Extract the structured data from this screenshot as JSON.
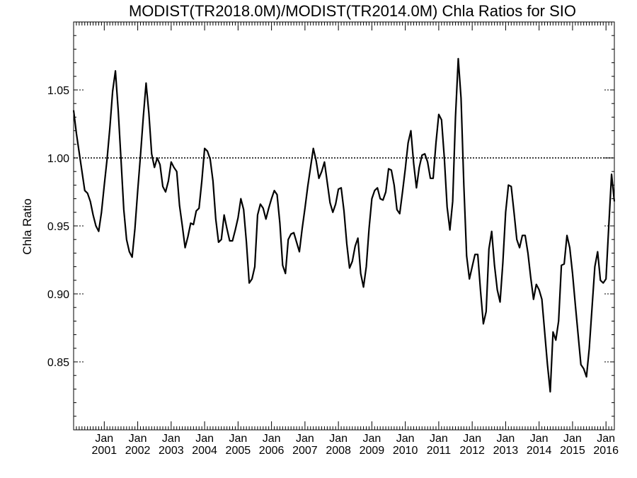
{
  "chart_data": {
    "type": "line",
    "title": "MODIST(TR2018.0M)/MODIST(TR2014.0M)  Chla Ratios for SIO",
    "xlabel": "",
    "ylabel": "Chla Ratio",
    "xlim": [
      "2000-02",
      "2016-04"
    ],
    "ylim": [
      0.8,
      1.1
    ],
    "yticks": [
      0.85,
      0.9,
      0.95,
      1.0,
      1.05
    ],
    "ytick_labels": [
      "0.85",
      "0.90",
      "0.95",
      "1.00",
      "1.05"
    ],
    "xticks": [
      {
        "date": "2001-01",
        "top": "Jan",
        "bottom": "2001"
      },
      {
        "date": "2002-01",
        "top": "Jan",
        "bottom": "2002"
      },
      {
        "date": "2003-01",
        "top": "Jan",
        "bottom": "2003"
      },
      {
        "date": "2004-01",
        "top": "Jan",
        "bottom": "2004"
      },
      {
        "date": "2005-01",
        "top": "Jan",
        "bottom": "2005"
      },
      {
        "date": "2006-01",
        "top": "Jan",
        "bottom": "2006"
      },
      {
        "date": "2007-01",
        "top": "Jan",
        "bottom": "2007"
      },
      {
        "date": "2008-01",
        "top": "Jan",
        "bottom": "2008"
      },
      {
        "date": "2009-01",
        "top": "Jan",
        "bottom": "2009"
      },
      {
        "date": "2010-01",
        "top": "Jan",
        "bottom": "2010"
      },
      {
        "date": "2011-01",
        "top": "Jan",
        "bottom": "2011"
      },
      {
        "date": "2012-01",
        "top": "Jan",
        "bottom": "2012"
      },
      {
        "date": "2013-01",
        "top": "Jan",
        "bottom": "2013"
      },
      {
        "date": "2014-01",
        "top": "Jan",
        "bottom": "2014"
      },
      {
        "date": "2015-01",
        "top": "Jan",
        "bottom": "2015"
      },
      {
        "date": "2016-01",
        "top": "Jan",
        "bottom": "2016"
      }
    ],
    "reference_line": 1.0,
    "grid": false,
    "series": [
      {
        "values": [
          [
            "2000-02",
            1.035
          ],
          [
            "2000-03",
            1.018
          ],
          [
            "2000-04",
            1.004
          ],
          [
            "2000-05",
            0.99
          ],
          [
            "2000-06",
            0.976
          ],
          [
            "2000-07",
            0.974
          ],
          [
            "2000-08",
            0.968
          ],
          [
            "2000-09",
            0.958
          ],
          [
            "2000-10",
            0.95
          ],
          [
            "2000-11",
            0.946
          ],
          [
            "2000-12",
            0.96
          ],
          [
            "2001-01",
            0.98
          ],
          [
            "2001-02",
            0.999
          ],
          [
            "2001-03",
            1.022
          ],
          [
            "2001-04",
            1.049
          ],
          [
            "2001-05",
            1.064
          ],
          [
            "2001-06",
            1.035
          ],
          [
            "2001-07",
            0.999
          ],
          [
            "2001-08",
            0.962
          ],
          [
            "2001-09",
            0.94
          ],
          [
            "2001-10",
            0.931
          ],
          [
            "2001-11",
            0.927
          ],
          [
            "2001-12",
            0.948
          ],
          [
            "2002-01",
            0.976
          ],
          [
            "2002-02",
            1.002
          ],
          [
            "2002-03",
            1.03
          ],
          [
            "2002-04",
            1.055
          ],
          [
            "2002-05",
            1.033
          ],
          [
            "2002-06",
            1.003
          ],
          [
            "2002-07",
            0.993
          ],
          [
            "2002-08",
            1.0
          ],
          [
            "2002-09",
            0.995
          ],
          [
            "2002-10",
            0.979
          ],
          [
            "2002-11",
            0.975
          ],
          [
            "2002-12",
            0.983
          ],
          [
            "2003-01",
            0.997
          ],
          [
            "2003-02",
            0.993
          ],
          [
            "2003-03",
            0.99
          ],
          [
            "2003-04",
            0.965
          ],
          [
            "2003-05",
            0.95
          ],
          [
            "2003-06",
            0.934
          ],
          [
            "2003-07",
            0.942
          ],
          [
            "2003-08",
            0.952
          ],
          [
            "2003-09",
            0.951
          ],
          [
            "2003-10",
            0.961
          ],
          [
            "2003-11",
            0.963
          ],
          [
            "2003-12",
            0.983
          ],
          [
            "2004-01",
            1.007
          ],
          [
            "2004-02",
            1.005
          ],
          [
            "2004-03",
            0.999
          ],
          [
            "2004-04",
            0.983
          ],
          [
            "2004-05",
            0.955
          ],
          [
            "2004-06",
            0.938
          ],
          [
            "2004-07",
            0.94
          ],
          [
            "2004-08",
            0.958
          ],
          [
            "2004-09",
            0.948
          ],
          [
            "2004-10",
            0.939
          ],
          [
            "2004-11",
            0.939
          ],
          [
            "2004-12",
            0.947
          ],
          [
            "2005-01",
            0.956
          ],
          [
            "2005-02",
            0.97
          ],
          [
            "2005-03",
            0.962
          ],
          [
            "2005-04",
            0.938
          ],
          [
            "2005-05",
            0.908
          ],
          [
            "2005-06",
            0.911
          ],
          [
            "2005-07",
            0.92
          ],
          [
            "2005-08",
            0.958
          ],
          [
            "2005-09",
            0.966
          ],
          [
            "2005-10",
            0.963
          ],
          [
            "2005-11",
            0.955
          ],
          [
            "2005-12",
            0.963
          ],
          [
            "2006-01",
            0.97
          ],
          [
            "2006-02",
            0.976
          ],
          [
            "2006-03",
            0.973
          ],
          [
            "2006-04",
            0.952
          ],
          [
            "2006-05",
            0.921
          ],
          [
            "2006-06",
            0.915
          ],
          [
            "2006-07",
            0.94
          ],
          [
            "2006-08",
            0.944
          ],
          [
            "2006-09",
            0.945
          ],
          [
            "2006-10",
            0.938
          ],
          [
            "2006-11",
            0.931
          ],
          [
            "2006-12",
            0.948
          ],
          [
            "2007-01",
            0.963
          ],
          [
            "2007-02",
            0.979
          ],
          [
            "2007-03",
            0.993
          ],
          [
            "2007-04",
            1.007
          ],
          [
            "2007-05",
            0.998
          ],
          [
            "2007-06",
            0.985
          ],
          [
            "2007-07",
            0.99
          ],
          [
            "2007-08",
            0.997
          ],
          [
            "2007-09",
            0.982
          ],
          [
            "2007-10",
            0.967
          ],
          [
            "2007-11",
            0.96
          ],
          [
            "2007-12",
            0.966
          ],
          [
            "2008-01",
            0.977
          ],
          [
            "2008-02",
            0.978
          ],
          [
            "2008-03",
            0.961
          ],
          [
            "2008-04",
            0.937
          ],
          [
            "2008-05",
            0.919
          ],
          [
            "2008-06",
            0.924
          ],
          [
            "2008-07",
            0.935
          ],
          [
            "2008-08",
            0.941
          ],
          [
            "2008-09",
            0.915
          ],
          [
            "2008-10",
            0.905
          ],
          [
            "2008-11",
            0.92
          ],
          [
            "2008-12",
            0.948
          ],
          [
            "2009-01",
            0.97
          ],
          [
            "2009-02",
            0.976
          ],
          [
            "2009-03",
            0.978
          ],
          [
            "2009-04",
            0.97
          ],
          [
            "2009-05",
            0.969
          ],
          [
            "2009-06",
            0.975
          ],
          [
            "2009-07",
            0.992
          ],
          [
            "2009-08",
            0.991
          ],
          [
            "2009-09",
            0.98
          ],
          [
            "2009-10",
            0.962
          ],
          [
            "2009-11",
            0.959
          ],
          [
            "2009-12",
            0.975
          ],
          [
            "2010-01",
            0.992
          ],
          [
            "2010-02",
            1.011
          ],
          [
            "2010-03",
            1.02
          ],
          [
            "2010-04",
            0.996
          ],
          [
            "2010-05",
            0.978
          ],
          [
            "2010-06",
            0.993
          ],
          [
            "2010-07",
            1.002
          ],
          [
            "2010-08",
            1.003
          ],
          [
            "2010-09",
            0.997
          ],
          [
            "2010-10",
            0.985
          ],
          [
            "2010-11",
            0.985
          ],
          [
            "2010-12",
            1.011
          ],
          [
            "2011-01",
            1.032
          ],
          [
            "2011-02",
            1.028
          ],
          [
            "2011-03",
            1.0
          ],
          [
            "2011-04",
            0.964
          ],
          [
            "2011-05",
            0.947
          ],
          [
            "2011-06",
            0.968
          ],
          [
            "2011-07",
            1.03
          ],
          [
            "2011-08",
            1.073
          ],
          [
            "2011-09",
            1.044
          ],
          [
            "2011-10",
            0.98
          ],
          [
            "2011-11",
            0.928
          ],
          [
            "2011-12",
            0.911
          ],
          [
            "2012-01",
            0.92
          ],
          [
            "2012-02",
            0.929
          ],
          [
            "2012-03",
            0.929
          ],
          [
            "2012-04",
            0.902
          ],
          [
            "2012-05",
            0.878
          ],
          [
            "2012-06",
            0.887
          ],
          [
            "2012-07",
            0.933
          ],
          [
            "2012-08",
            0.946
          ],
          [
            "2012-09",
            0.921
          ],
          [
            "2012-10",
            0.903
          ],
          [
            "2012-11",
            0.894
          ],
          [
            "2012-12",
            0.923
          ],
          [
            "2013-01",
            0.96
          ],
          [
            "2013-02",
            0.98
          ],
          [
            "2013-03",
            0.979
          ],
          [
            "2013-04",
            0.96
          ],
          [
            "2013-05",
            0.94
          ],
          [
            "2013-06",
            0.934
          ],
          [
            "2013-07",
            0.943
          ],
          [
            "2013-08",
            0.943
          ],
          [
            "2013-09",
            0.93
          ],
          [
            "2013-10",
            0.912
          ],
          [
            "2013-11",
            0.896
          ],
          [
            "2013-12",
            0.907
          ],
          [
            "2014-01",
            0.903
          ],
          [
            "2014-02",
            0.896
          ],
          [
            "2014-03",
            0.872
          ],
          [
            "2014-04",
            0.848
          ],
          [
            "2014-05",
            0.828
          ],
          [
            "2014-06",
            0.872
          ],
          [
            "2014-07",
            0.866
          ],
          [
            "2014-08",
            0.88
          ],
          [
            "2014-09",
            0.921
          ],
          [
            "2014-10",
            0.922
          ],
          [
            "2014-11",
            0.943
          ],
          [
            "2014-12",
            0.934
          ],
          [
            "2015-01",
            0.915
          ],
          [
            "2015-02",
            0.892
          ],
          [
            "2015-03",
            0.87
          ],
          [
            "2015-04",
            0.848
          ],
          [
            "2015-05",
            0.845
          ],
          [
            "2015-06",
            0.839
          ],
          [
            "2015-07",
            0.86
          ],
          [
            "2015-08",
            0.89
          ],
          [
            "2015-09",
            0.92
          ],
          [
            "2015-10",
            0.931
          ],
          [
            "2015-11",
            0.91
          ],
          [
            "2015-12",
            0.908
          ],
          [
            "2016-01",
            0.911
          ],
          [
            "2016-02",
            0.95
          ],
          [
            "2016-03",
            0.988
          ],
          [
            "2016-04",
            0.968
          ]
        ]
      }
    ]
  }
}
